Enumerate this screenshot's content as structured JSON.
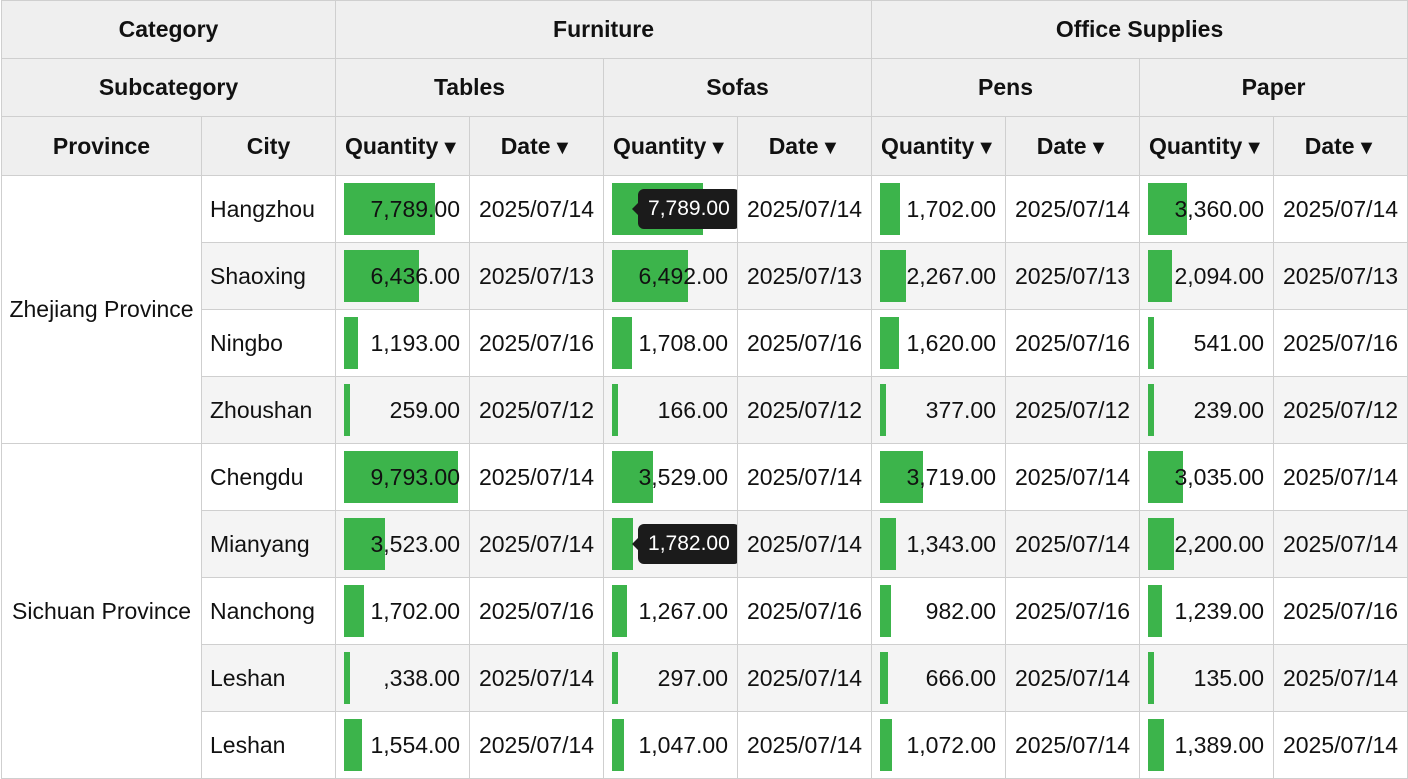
{
  "header": {
    "row1_label": "Category",
    "row2_label": "Subcategory",
    "province_label": "Province",
    "city_label": "City",
    "quantity_label": "Quantity",
    "date_label": "Date",
    "sort_icon": "▼",
    "categories": [
      {
        "name": "Furniture",
        "subcategories": [
          "Tables",
          "Sofas"
        ]
      },
      {
        "name": "Office Supplies",
        "subcategories": [
          "Pens",
          "Paper"
        ]
      }
    ]
  },
  "scale_max": 9793,
  "bar_color": "#3cb44b",
  "provinces": [
    {
      "name": "Zhejiang Province",
      "rows": [
        {
          "city": "Hangzhou",
          "cells": [
            {
              "q": 7789,
              "label": "7,789.00",
              "date": "2025/07/14"
            },
            {
              "q": 7789,
              "label": "7,789.00",
              "date": "2025/07/14",
              "tooltip": "7,789.00"
            },
            {
              "q": 1702,
              "label": "1,702.00",
              "date": "2025/07/14"
            },
            {
              "q": 3360,
              "label": "3,360.00",
              "date": "2025/07/14"
            }
          ]
        },
        {
          "city": "Shaoxing",
          "cells": [
            {
              "q": 6436,
              "label": "6,436.00",
              "date": "2025/07/13"
            },
            {
              "q": 6492,
              "label": "6,492.00",
              "date": "2025/07/13"
            },
            {
              "q": 2267,
              "label": "2,267.00",
              "date": "2025/07/13"
            },
            {
              "q": 2094,
              "label": "2,094.00",
              "date": "2025/07/13"
            }
          ]
        },
        {
          "city": "Ningbo",
          "cells": [
            {
              "q": 1193,
              "label": "1,193.00",
              "date": "2025/07/16"
            },
            {
              "q": 1708,
              "label": "1,708.00",
              "date": "2025/07/16"
            },
            {
              "q": 1620,
              "label": "1,620.00",
              "date": "2025/07/16"
            },
            {
              "q": 541,
              "label": "541.00",
              "date": "2025/07/16"
            }
          ]
        },
        {
          "city": "Zhoushan",
          "cells": [
            {
              "q": 259,
              "label": "259.00",
              "date": "2025/07/12"
            },
            {
              "q": 166,
              "label": "166.00",
              "date": "2025/07/12"
            },
            {
              "q": 377,
              "label": "377.00",
              "date": "2025/07/12"
            },
            {
              "q": 239,
              "label": "239.00",
              "date": "2025/07/12"
            }
          ]
        }
      ]
    },
    {
      "name": "Sichuan Province",
      "rows": [
        {
          "city": "Chengdu",
          "cells": [
            {
              "q": 9793,
              "label": "9,793.00",
              "date": "2025/07/14"
            },
            {
              "q": 3529,
              "label": "3,529.00",
              "date": "2025/07/14"
            },
            {
              "q": 3719,
              "label": "3,719.00",
              "date": "2025/07/14"
            },
            {
              "q": 3035,
              "label": "3,035.00",
              "date": "2025/07/14"
            }
          ]
        },
        {
          "city": "Mianyang",
          "cells": [
            {
              "q": 3523,
              "label": "3,523.00",
              "date": "2025/07/14"
            },
            {
              "q": 1782,
              "label": "1,782.00",
              "date": "2025/07/14",
              "tooltip": "1,782.00"
            },
            {
              "q": 1343,
              "label": "1,343.00",
              "date": "2025/07/14"
            },
            {
              "q": 2200,
              "label": "2,200.00",
              "date": "2025/07/14"
            }
          ]
        },
        {
          "city": "Nanchong",
          "cells": [
            {
              "q": 1702,
              "label": "1,702.00",
              "date": "2025/07/16"
            },
            {
              "q": 1267,
              "label": "1,267.00",
              "date": "2025/07/16"
            },
            {
              "q": 982,
              "label": "982.00",
              "date": "2025/07/16"
            },
            {
              "q": 1239,
              "label": "1,239.00",
              "date": "2025/07/16"
            }
          ]
        },
        {
          "city": "Leshan",
          "cells": [
            {
              "q": 338,
              "label": ",338.00",
              "date": "2025/07/14"
            },
            {
              "q": 297,
              "label": "297.00",
              "date": "2025/07/14"
            },
            {
              "q": 666,
              "label": "666.00",
              "date": "2025/07/14"
            },
            {
              "q": 135,
              "label": "135.00",
              "date": "2025/07/14"
            }
          ]
        },
        {
          "city": "Leshan",
          "cells": [
            {
              "q": 1554,
              "label": "1,554.00",
              "date": "2025/07/14"
            },
            {
              "q": 1047,
              "label": "1,047.00",
              "date": "2025/07/14"
            },
            {
              "q": 1072,
              "label": "1,072.00",
              "date": "2025/07/14"
            },
            {
              "q": 1389,
              "label": "1,389.00",
              "date": "2025/07/14"
            }
          ]
        }
      ]
    }
  ]
}
